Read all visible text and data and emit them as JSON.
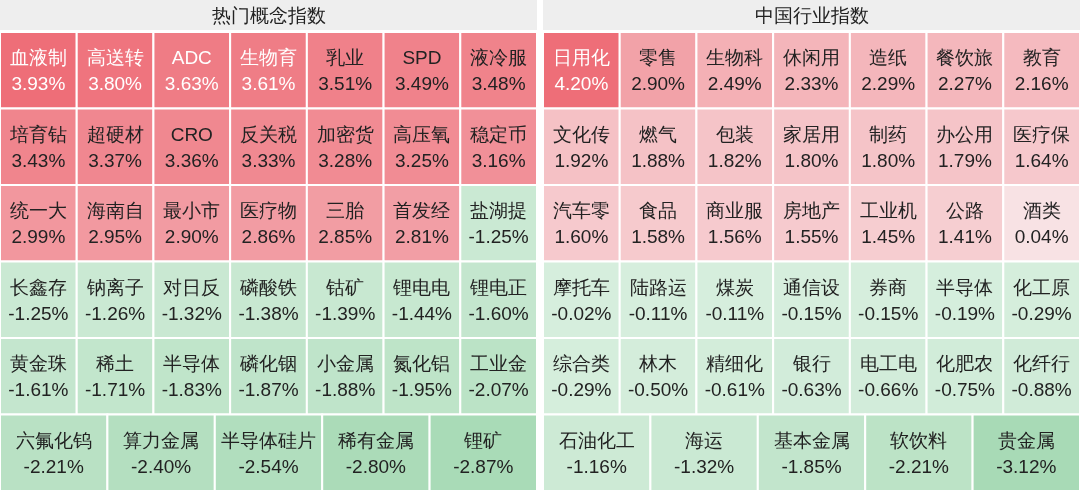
{
  "chart_data": [
    {
      "type": "other",
      "title": "热门概念指数",
      "categories": [
        "血液制",
        "高送转",
        "ADC",
        "生物育",
        "乳业",
        "SPD",
        "液冷服",
        "培育钻",
        "超硬材",
        "CRO",
        "反关税",
        "加密货",
        "高压氧",
        "稳定币",
        "统一大",
        "海南自",
        "最小市",
        "医疗物",
        "三胎",
        "首发经",
        "盐湖提",
        "长鑫存",
        "钠离子",
        "对日反",
        "磷酸铁",
        "钴矿",
        "锂电电",
        "锂电正",
        "黄金珠",
        "稀土",
        "半导体",
        "磷化铟",
        "小金属",
        "氮化铝",
        "工业金",
        "六氟化钨",
        "算力金属",
        "半导体硅片",
        "稀有金属",
        "锂矿"
      ],
      "values": [
        3.93,
        3.8,
        3.63,
        3.61,
        3.51,
        3.49,
        3.48,
        3.43,
        3.37,
        3.36,
        3.33,
        3.28,
        3.25,
        3.16,
        2.99,
        2.95,
        2.9,
        2.86,
        2.85,
        2.81,
        -1.25,
        -1.25,
        -1.26,
        -1.32,
        -1.38,
        -1.39,
        -1.44,
        -1.6,
        -1.61,
        -1.71,
        -1.83,
        -1.87,
        -1.88,
        -1.95,
        -2.07,
        -2.21,
        -2.4,
        -2.54,
        -2.8,
        -2.87
      ],
      "value_labels": [
        "3.93%",
        "3.80%",
        "3.63%",
        "3.61%",
        "3.51%",
        "3.49%",
        "3.48%",
        "3.43%",
        "3.37%",
        "3.36%",
        "3.33%",
        "3.28%",
        "3.25%",
        "3.16%",
        "2.99%",
        "2.95%",
        "2.90%",
        "2.86%",
        "2.85%",
        "2.81%",
        "-1.25%",
        "-1.25%",
        "-1.26%",
        "-1.32%",
        "-1.38%",
        "-1.39%",
        "-1.44%",
        "-1.60%",
        "-1.61%",
        "-1.71%",
        "-1.83%",
        "-1.87%",
        "-1.88%",
        "-1.95%",
        "-2.07%",
        "-2.21%",
        "-2.40%",
        "-2.54%",
        "-2.80%",
        "-2.87%"
      ]
    },
    {
      "type": "other",
      "title": "中国行业指数",
      "categories": [
        "日用化",
        "零售",
        "生物科",
        "休闲用",
        "造纸",
        "餐饮旅",
        "教育",
        "文化传",
        "燃气",
        "包装",
        "家居用",
        "制药",
        "办公用",
        "医疗保",
        "汽车零",
        "食品",
        "商业服",
        "房地产",
        "工业机",
        "公路",
        "酒类",
        "摩托车",
        "陆路运",
        "煤炭",
        "通信设",
        "券商",
        "半导体",
        "化工原",
        "综合类",
        "林木",
        "精细化",
        "银行",
        "电工电",
        "化肥农",
        "化纤行",
        "石油化工",
        "海运",
        "基本金属",
        "软饮料",
        "贵金属"
      ],
      "values": [
        4.2,
        2.9,
        2.49,
        2.33,
        2.29,
        2.27,
        2.16,
        1.92,
        1.88,
        1.82,
        1.8,
        1.8,
        1.79,
        1.64,
        1.6,
        1.58,
        1.56,
        1.55,
        1.45,
        1.41,
        0.04,
        -0.02,
        -0.11,
        -0.11,
        -0.15,
        -0.15,
        -0.19,
        -0.29,
        -0.29,
        -0.5,
        -0.61,
        -0.63,
        -0.66,
        -0.75,
        -0.88,
        -1.16,
        -1.32,
        -1.85,
        -2.21,
        -3.12
      ],
      "value_labels": [
        "4.20%",
        "2.90%",
        "2.49%",
        "2.33%",
        "2.29%",
        "2.27%",
        "2.16%",
        "1.92%",
        "1.88%",
        "1.82%",
        "1.80%",
        "1.80%",
        "1.79%",
        "1.64%",
        "1.60%",
        "1.58%",
        "1.56%",
        "1.55%",
        "1.45%",
        "1.41%",
        "0.04%",
        "-0.02%",
        "-0.11%",
        "-0.11%",
        "-0.15%",
        "-0.15%",
        "-0.19%",
        "-0.29%",
        "-0.29%",
        "-0.50%",
        "-0.61%",
        "-0.63%",
        "-0.66%",
        "-0.75%",
        "-0.88%",
        "-1.16%",
        "-1.32%",
        "-1.85%",
        "-2.21%",
        "-3.12%"
      ]
    }
  ]
}
